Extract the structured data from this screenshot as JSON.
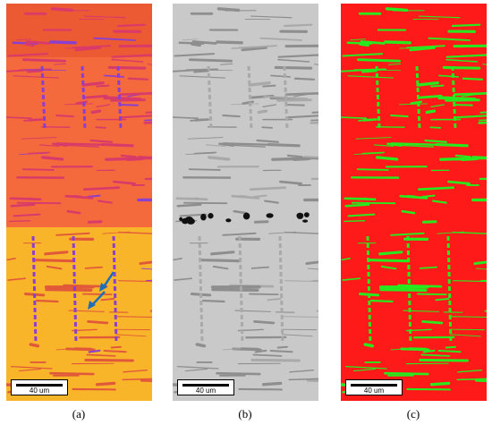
{
  "panels": [
    {
      "id": "a",
      "caption": "(a)",
      "scale_label": "40 um",
      "description": "phase-orientation-map"
    },
    {
      "id": "b",
      "caption": "(b)",
      "scale_label": "40 um",
      "description": "grayscale-micrograph"
    },
    {
      "id": "c",
      "caption": "(c)",
      "scale_label": "40 um",
      "description": "phase-map"
    }
  ],
  "colors": {
    "panel_a_top": "#f46a3c",
    "panel_a_bottom": "#f9b52a",
    "panel_a_secondary": "#d83a6a",
    "panel_a_arrow": "#1f6fb8",
    "panel_b_matrix": "#c9c9c9",
    "panel_b_lamella": "#8e8e8e",
    "panel_b_void": "#111111",
    "panel_c_primary": "#ff1a1a",
    "panel_c_secondary": "#28e81e"
  }
}
